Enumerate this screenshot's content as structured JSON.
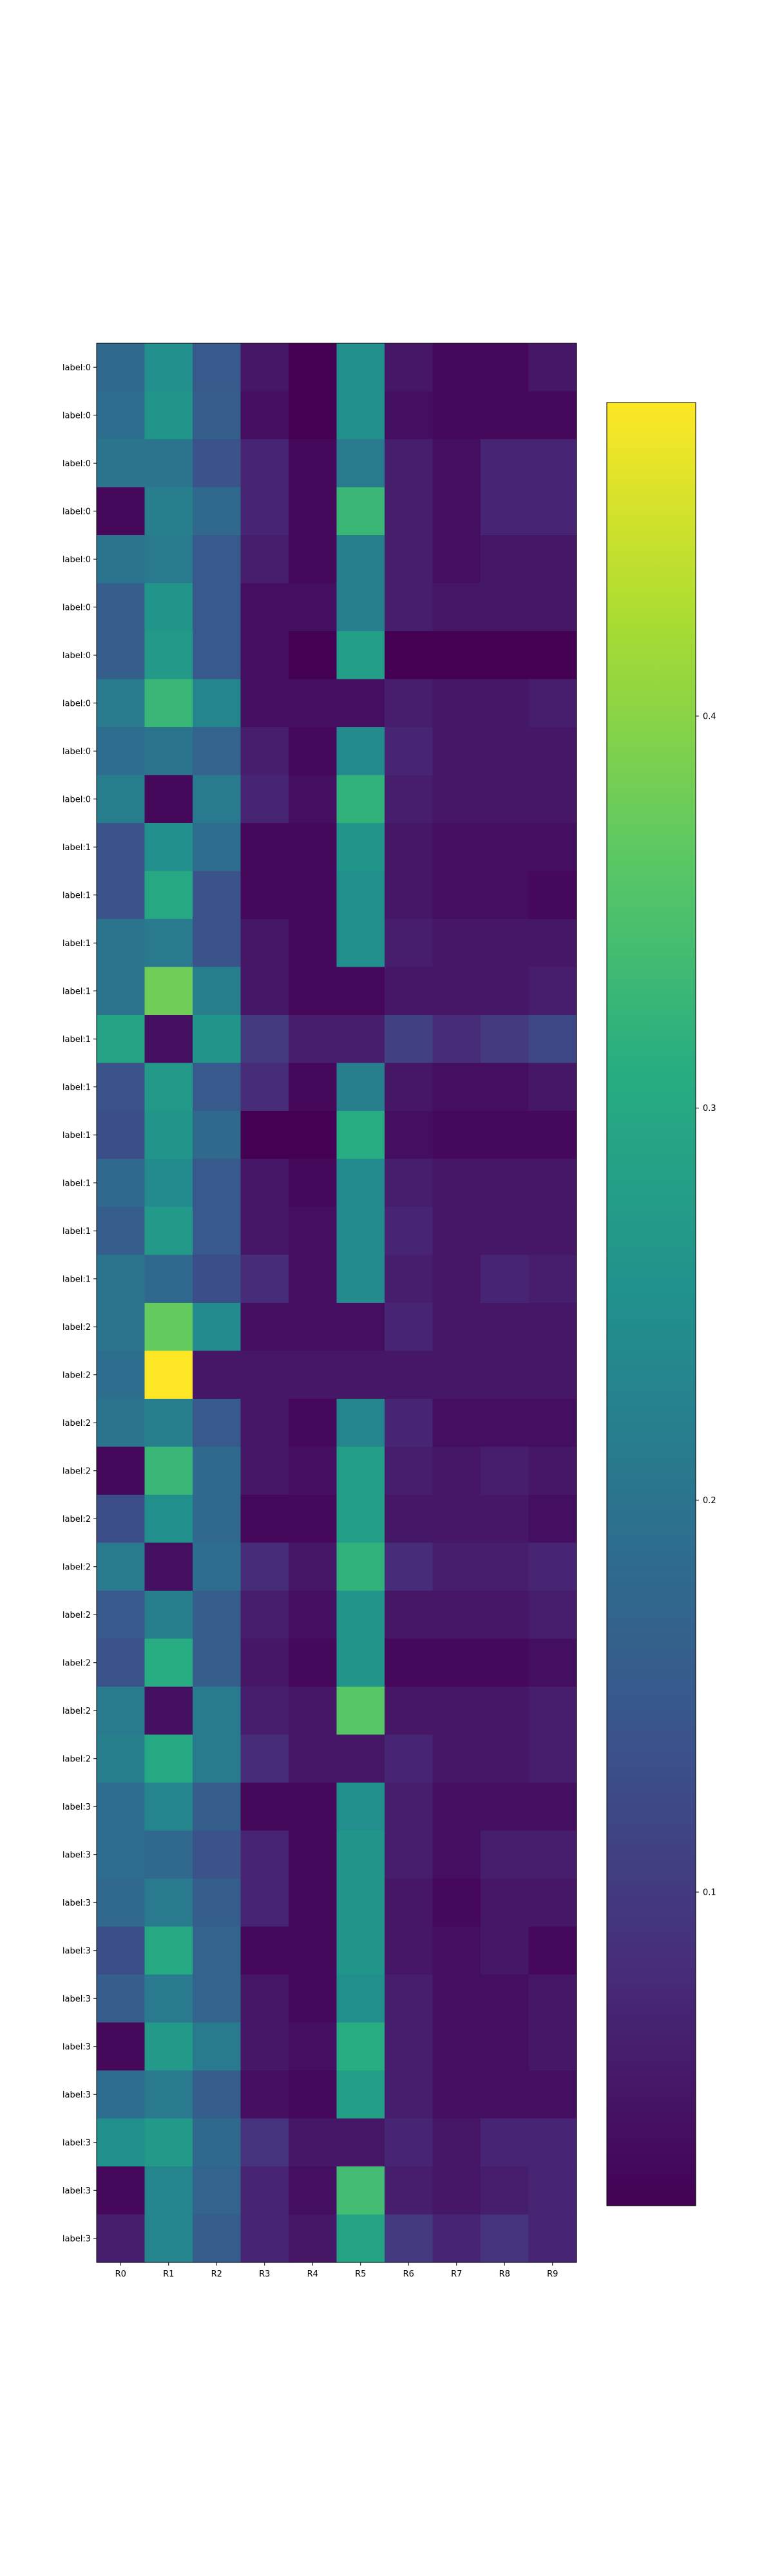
{
  "chart_data": {
    "type": "heatmap",
    "title": "",
    "xlabel": "",
    "ylabel": "",
    "colormap": "viridis",
    "colorbar": {
      "range": [
        0.02,
        0.48
      ],
      "ticks": [
        0.1,
        0.2,
        0.3,
        0.4
      ],
      "tick_labels": [
        "0.1",
        "0.2",
        "0.3",
        "0.4"
      ]
    },
    "columns": [
      "R0",
      "R1",
      "R2",
      "R3",
      "R4",
      "R5",
      "R6",
      "R7",
      "R8",
      "R9"
    ],
    "rows": [
      "label:0",
      "label:0",
      "label:0",
      "label:0",
      "label:0",
      "label:0",
      "label:0",
      "label:0",
      "label:0",
      "label:0",
      "label:1",
      "label:1",
      "label:1",
      "label:1",
      "label:1",
      "label:1",
      "label:1",
      "label:1",
      "label:1",
      "label:1",
      "label:2",
      "label:2",
      "label:2",
      "label:2",
      "label:2",
      "label:2",
      "label:2",
      "label:2",
      "label:2",
      "label:2",
      "label:3",
      "label:3",
      "label:3",
      "label:3",
      "label:3",
      "label:3",
      "label:3",
      "label:3",
      "label:3",
      "label:3"
    ],
    "values": [
      [
        0.18,
        0.25,
        0.15,
        0.05,
        0.02,
        0.25,
        0.05,
        0.03,
        0.03,
        0.05
      ],
      [
        0.19,
        0.26,
        0.16,
        0.04,
        0.02,
        0.25,
        0.04,
        0.03,
        0.03,
        0.03
      ],
      [
        0.2,
        0.2,
        0.14,
        0.07,
        0.03,
        0.21,
        0.06,
        0.04,
        0.07,
        0.07
      ],
      [
        0.03,
        0.22,
        0.18,
        0.07,
        0.03,
        0.33,
        0.06,
        0.04,
        0.07,
        0.07
      ],
      [
        0.2,
        0.21,
        0.15,
        0.06,
        0.03,
        0.22,
        0.06,
        0.04,
        0.05,
        0.05
      ],
      [
        0.16,
        0.26,
        0.15,
        0.04,
        0.04,
        0.22,
        0.06,
        0.05,
        0.05,
        0.05
      ],
      [
        0.16,
        0.27,
        0.15,
        0.04,
        0.02,
        0.28,
        0.02,
        0.02,
        0.02,
        0.02
      ],
      [
        0.21,
        0.33,
        0.23,
        0.04,
        0.04,
        0.04,
        0.06,
        0.05,
        0.05,
        0.06
      ],
      [
        0.19,
        0.2,
        0.17,
        0.06,
        0.03,
        0.24,
        0.07,
        0.05,
        0.05,
        0.05
      ],
      [
        0.22,
        0.03,
        0.21,
        0.07,
        0.04,
        0.32,
        0.06,
        0.05,
        0.05,
        0.05
      ],
      [
        0.14,
        0.25,
        0.19,
        0.03,
        0.03,
        0.26,
        0.05,
        0.04,
        0.04,
        0.04
      ],
      [
        0.14,
        0.3,
        0.14,
        0.03,
        0.03,
        0.25,
        0.05,
        0.04,
        0.04,
        0.03
      ],
      [
        0.2,
        0.21,
        0.14,
        0.05,
        0.03,
        0.25,
        0.06,
        0.05,
        0.05,
        0.05
      ],
      [
        0.2,
        0.38,
        0.22,
        0.05,
        0.03,
        0.03,
        0.05,
        0.05,
        0.05,
        0.06
      ],
      [
        0.29,
        0.04,
        0.26,
        0.1,
        0.06,
        0.06,
        0.11,
        0.08,
        0.1,
        0.12
      ],
      [
        0.14,
        0.27,
        0.15,
        0.08,
        0.03,
        0.22,
        0.05,
        0.04,
        0.04,
        0.05
      ],
      [
        0.13,
        0.26,
        0.18,
        0.02,
        0.02,
        0.31,
        0.04,
        0.03,
        0.03,
        0.03
      ],
      [
        0.18,
        0.24,
        0.15,
        0.05,
        0.03,
        0.24,
        0.06,
        0.05,
        0.05,
        0.05
      ],
      [
        0.16,
        0.27,
        0.15,
        0.05,
        0.04,
        0.24,
        0.07,
        0.05,
        0.05,
        0.05
      ],
      [
        0.2,
        0.18,
        0.13,
        0.08,
        0.04,
        0.24,
        0.06,
        0.05,
        0.07,
        0.06
      ],
      [
        0.2,
        0.37,
        0.24,
        0.04,
        0.04,
        0.04,
        0.07,
        0.05,
        0.05,
        0.05
      ],
      [
        0.19,
        0.48,
        0.05,
        0.05,
        0.05,
        0.05,
        0.05,
        0.05,
        0.05,
        0.05
      ],
      [
        0.2,
        0.22,
        0.15,
        0.05,
        0.03,
        0.23,
        0.07,
        0.04,
        0.04,
        0.04
      ],
      [
        0.03,
        0.33,
        0.18,
        0.05,
        0.04,
        0.28,
        0.06,
        0.05,
        0.06,
        0.05
      ],
      [
        0.13,
        0.25,
        0.18,
        0.03,
        0.03,
        0.28,
        0.05,
        0.05,
        0.05,
        0.04
      ],
      [
        0.21,
        0.04,
        0.19,
        0.08,
        0.05,
        0.32,
        0.08,
        0.06,
        0.06,
        0.07
      ],
      [
        0.15,
        0.22,
        0.16,
        0.06,
        0.04,
        0.26,
        0.05,
        0.05,
        0.05,
        0.06
      ],
      [
        0.14,
        0.31,
        0.16,
        0.05,
        0.03,
        0.26,
        0.03,
        0.03,
        0.03,
        0.04
      ],
      [
        0.21,
        0.04,
        0.21,
        0.06,
        0.05,
        0.36,
        0.05,
        0.05,
        0.05,
        0.06
      ],
      [
        0.22,
        0.3,
        0.21,
        0.08,
        0.05,
        0.05,
        0.07,
        0.05,
        0.05,
        0.06
      ],
      [
        0.19,
        0.23,
        0.16,
        0.03,
        0.03,
        0.25,
        0.06,
        0.04,
        0.04,
        0.04
      ],
      [
        0.19,
        0.18,
        0.14,
        0.07,
        0.03,
        0.26,
        0.06,
        0.04,
        0.06,
        0.06
      ],
      [
        0.18,
        0.21,
        0.16,
        0.07,
        0.03,
        0.26,
        0.05,
        0.03,
        0.05,
        0.05
      ],
      [
        0.13,
        0.3,
        0.17,
        0.03,
        0.03,
        0.26,
        0.05,
        0.04,
        0.05,
        0.03
      ],
      [
        0.16,
        0.21,
        0.17,
        0.05,
        0.03,
        0.25,
        0.06,
        0.04,
        0.04,
        0.05
      ],
      [
        0.03,
        0.27,
        0.21,
        0.05,
        0.04,
        0.31,
        0.06,
        0.04,
        0.04,
        0.05
      ],
      [
        0.19,
        0.21,
        0.16,
        0.04,
        0.03,
        0.28,
        0.06,
        0.04,
        0.04,
        0.04
      ],
      [
        0.25,
        0.27,
        0.18,
        0.09,
        0.05,
        0.05,
        0.07,
        0.05,
        0.07,
        0.07
      ],
      [
        0.03,
        0.23,
        0.17,
        0.07,
        0.04,
        0.34,
        0.06,
        0.05,
        0.06,
        0.07
      ],
      [
        0.06,
        0.23,
        0.16,
        0.07,
        0.05,
        0.29,
        0.1,
        0.07,
        0.09,
        0.07
      ]
    ]
  }
}
